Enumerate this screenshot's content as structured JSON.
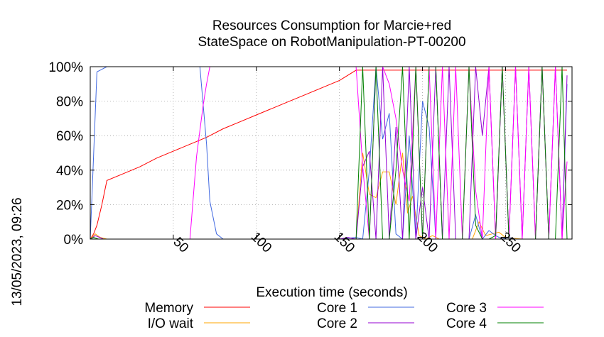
{
  "chart_data": {
    "type": "line",
    "title": [
      "Resources Consumption for Marcie+red",
      "StateSpace on RobotManipulation-PT-00200"
    ],
    "xlabel": "Execution time (seconds)",
    "timestamp": "13/05/2023, 09:26",
    "xlim": [
      0,
      290
    ],
    "ylim": [
      0,
      100
    ],
    "xticks": [
      {
        "value": 50,
        "label": "50"
      },
      {
        "value": 100,
        "label": "100"
      },
      {
        "value": 150,
        "label": "150"
      },
      {
        "value": 200,
        "label": "200"
      },
      {
        "value": 250,
        "label": "250"
      }
    ],
    "yticks": [
      {
        "value": 0,
        "label": "0%"
      },
      {
        "value": 20,
        "label": "20%"
      },
      {
        "value": 40,
        "label": "40%"
      },
      {
        "value": 60,
        "label": "60%"
      },
      {
        "value": 80,
        "label": "80%"
      },
      {
        "value": 100,
        "label": "100%"
      }
    ],
    "grid": true,
    "legend_position": "bottom",
    "series": [
      {
        "name": "Memory",
        "color": "#ff0000",
        "x": [
          0,
          2,
          4,
          7,
          10,
          20,
          30,
          40,
          50,
          60,
          70,
          80,
          90,
          100,
          110,
          120,
          130,
          140,
          150,
          155,
          160,
          170,
          180,
          200,
          250,
          287
        ],
        "y": [
          0,
          3,
          8,
          20,
          34,
          38,
          42,
          47,
          51,
          55,
          59,
          64,
          68,
          72,
          76,
          80,
          84,
          88,
          92,
          95,
          98,
          98,
          98,
          98,
          98,
          98
        ]
      },
      {
        "name": "I/O wait",
        "color": "#ffa500",
        "x": [
          0,
          3,
          6,
          10,
          150,
          160,
          164,
          168,
          172,
          176,
          180,
          184,
          188,
          191,
          194,
          198,
          202,
          206,
          210,
          230,
          234,
          238,
          242,
          246,
          250,
          260,
          287
        ],
        "y": [
          0,
          3,
          1,
          0,
          0,
          0,
          50,
          26,
          24,
          39,
          39,
          20,
          50,
          15,
          25,
          2,
          0,
          2,
          0,
          0,
          10,
          2,
          3,
          4,
          1,
          0,
          0
        ]
      },
      {
        "name": "Core 1",
        "color": "#4169e1",
        "x": [
          0,
          4,
          10,
          66,
          70,
          72,
          76,
          80,
          150,
          160,
          164,
          168,
          172,
          176,
          180,
          184,
          188,
          192,
          196,
          200,
          204,
          208,
          212,
          216,
          220,
          224,
          228,
          232,
          236,
          240,
          244,
          248,
          252,
          256,
          260,
          264,
          268,
          272,
          276,
          280,
          284,
          287
        ],
        "y": [
          0,
          97,
          100,
          100,
          55,
          22,
          3,
          0,
          0,
          1,
          0,
          40,
          100,
          58,
          73,
          3,
          0,
          60,
          0,
          80,
          65,
          0,
          0,
          0,
          0,
          0,
          0,
          14,
          0,
          5,
          2,
          0,
          1,
          0,
          0,
          0,
          0,
          0,
          0,
          0,
          0,
          90
        ]
      },
      {
        "name": "Core 2",
        "color": "#9400d3",
        "x": [
          0,
          3,
          8,
          150,
          155,
          160,
          164,
          168,
          172,
          176,
          180,
          184,
          188,
          192,
          196,
          200,
          204,
          208,
          212,
          216,
          220,
          224,
          228,
          232,
          236,
          240,
          244,
          248,
          252,
          256,
          260,
          264,
          268,
          272,
          276,
          280,
          284,
          287
        ],
        "y": [
          0,
          2,
          0,
          0,
          1,
          0,
          42,
          51,
          0,
          100,
          0,
          65,
          0,
          100,
          0,
          30,
          0,
          100,
          0,
          100,
          0,
          0,
          0,
          100,
          60,
          100,
          0,
          100,
          0,
          100,
          0,
          100,
          0,
          100,
          0,
          100,
          0,
          95
        ]
      },
      {
        "name": "Core 3",
        "color": "#ff00ff",
        "x": [
          0,
          60,
          64,
          68,
          70,
          72,
          75,
          150,
          160,
          164,
          168,
          172,
          176,
          180,
          184,
          188,
          192,
          196,
          200,
          204,
          208,
          212,
          216,
          220,
          224,
          228,
          232,
          236,
          240,
          244,
          248,
          252,
          256,
          260,
          264,
          268,
          272,
          276,
          280,
          284,
          287
        ],
        "y": [
          0,
          0,
          48,
          78,
          90,
          100,
          100,
          100,
          100,
          42,
          0,
          100,
          100,
          90,
          70,
          40,
          22,
          100,
          0,
          100,
          0,
          100,
          0,
          100,
          0,
          100,
          28,
          0,
          100,
          0,
          100,
          0,
          100,
          0,
          100,
          0,
          100,
          0,
          100,
          0,
          45
        ]
      },
      {
        "name": "Core 4",
        "color": "#008000",
        "x": [
          0,
          2,
          5,
          160,
          164,
          168,
          172,
          176,
          180,
          184,
          188,
          192,
          196,
          200,
          204,
          208,
          212,
          216,
          220,
          224,
          228,
          232,
          236,
          240,
          244,
          248,
          252,
          256,
          260,
          264,
          268,
          272,
          276,
          280,
          284,
          287
        ],
        "y": [
          0,
          1,
          0,
          0,
          100,
          0,
          100,
          0,
          0,
          40,
          100,
          0,
          100,
          0,
          100,
          100,
          0,
          0,
          0,
          0,
          100,
          8,
          0,
          0,
          2,
          100,
          0,
          0,
          0,
          0,
          0,
          100,
          0,
          0,
          100,
          0
        ]
      }
    ]
  }
}
